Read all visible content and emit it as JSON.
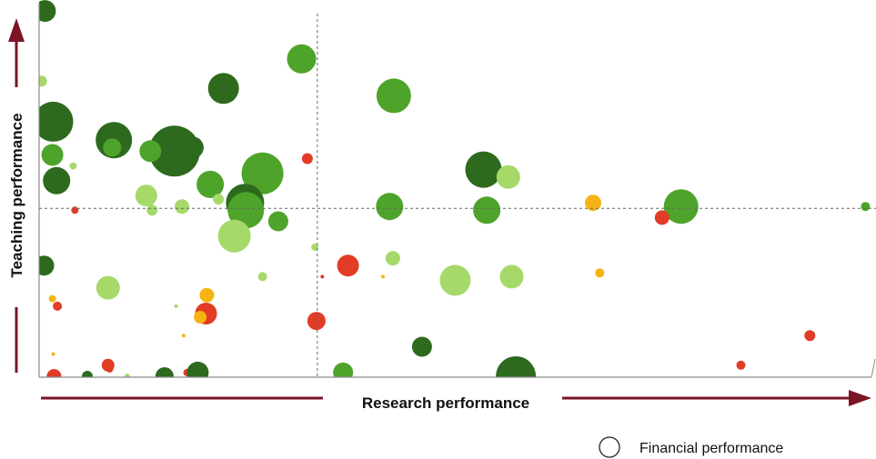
{
  "chart_data": {
    "type": "scatter",
    "subtype": "bubble",
    "xlabel": "Research performance",
    "ylabel": "Teaching performance",
    "xlim": [
      0,
      100
    ],
    "ylim": [
      0,
      100
    ],
    "grid": false,
    "reference_lines": {
      "x": 33.5,
      "y": 45.5
    },
    "axis_arrows": true,
    "legend": {
      "label": "Financial performance",
      "marker": "open-circle",
      "placement": "bottom-right"
    },
    "colors": {
      "dark_green": "#2d6a1e",
      "mid_green": "#4ea32a",
      "light_green": "#a6d96a",
      "orange": "#f6b314",
      "red": "#e03c26",
      "axis_arrow": "#7b1526",
      "reference_line": "#666666"
    },
    "points": [
      {
        "x": 0.7,
        "y": 99,
        "size": 12,
        "color": "dark_green"
      },
      {
        "x": 31.6,
        "y": 86,
        "size": 16,
        "color": "mid_green"
      },
      {
        "x": 0.3,
        "y": 80,
        "size": 6,
        "color": "light_green"
      },
      {
        "x": 22.2,
        "y": 78,
        "size": 17,
        "color": "dark_green"
      },
      {
        "x": 42.7,
        "y": 76,
        "size": 19,
        "color": "mid_green"
      },
      {
        "x": 1.7,
        "y": 69,
        "size": 22,
        "color": "dark_green"
      },
      {
        "x": 9,
        "y": 64,
        "size": 20,
        "color": "dark_green"
      },
      {
        "x": 8.8,
        "y": 62,
        "size": 10,
        "color": "mid_green"
      },
      {
        "x": 16.3,
        "y": 61,
        "size": 28,
        "color": "dark_green"
      },
      {
        "x": 18.5,
        "y": 62,
        "size": 12,
        "color": "dark_green"
      },
      {
        "x": 13.4,
        "y": 61,
        "size": 12,
        "color": "mid_green"
      },
      {
        "x": 1.6,
        "y": 60,
        "size": 12,
        "color": "mid_green"
      },
      {
        "x": 4.1,
        "y": 57,
        "size": 4,
        "color": "light_green"
      },
      {
        "x": 32.3,
        "y": 59,
        "size": 6,
        "color": "red"
      },
      {
        "x": 26.9,
        "y": 55,
        "size": 23,
        "color": "mid_green"
      },
      {
        "x": 53.5,
        "y": 56,
        "size": 20,
        "color": "dark_green"
      },
      {
        "x": 56.5,
        "y": 54,
        "size": 13,
        "color": "light_green"
      },
      {
        "x": 2.1,
        "y": 53,
        "size": 15,
        "color": "dark_green"
      },
      {
        "x": 20.6,
        "y": 52,
        "size": 15,
        "color": "mid_green"
      },
      {
        "x": 12.9,
        "y": 49,
        "size": 12,
        "color": "light_green"
      },
      {
        "x": 21.6,
        "y": 48,
        "size": 6,
        "color": "light_green"
      },
      {
        "x": 24.8,
        "y": 47,
        "size": 21,
        "color": "dark_green"
      },
      {
        "x": 24.9,
        "y": 45,
        "size": 20,
        "color": "mid_green"
      },
      {
        "x": 42.2,
        "y": 46,
        "size": 15,
        "color": "mid_green"
      },
      {
        "x": 53.9,
        "y": 45,
        "size": 15,
        "color": "mid_green"
      },
      {
        "x": 66.7,
        "y": 47,
        "size": 9,
        "color": "orange"
      },
      {
        "x": 77.3,
        "y": 46,
        "size": 19,
        "color": "mid_green"
      },
      {
        "x": 99.5,
        "y": 46,
        "size": 5,
        "color": "mid_green"
      },
      {
        "x": 4.3,
        "y": 45,
        "size": 4,
        "color": "red"
      },
      {
        "x": 13.6,
        "y": 45,
        "size": 6,
        "color": "light_green"
      },
      {
        "x": 17.2,
        "y": 46,
        "size": 8,
        "color": "light_green"
      },
      {
        "x": 28.8,
        "y": 42,
        "size": 11,
        "color": "mid_green"
      },
      {
        "x": 75,
        "y": 43,
        "size": 8,
        "color": "red"
      },
      {
        "x": 23.5,
        "y": 38,
        "size": 18,
        "color": "light_green"
      },
      {
        "x": 33.2,
        "y": 35,
        "size": 4,
        "color": "light_green"
      },
      {
        "x": 0.6,
        "y": 30,
        "size": 11,
        "color": "dark_green"
      },
      {
        "x": 37.2,
        "y": 30,
        "size": 12,
        "color": "red"
      },
      {
        "x": 42.6,
        "y": 32,
        "size": 8,
        "color": "light_green"
      },
      {
        "x": 50.1,
        "y": 26,
        "size": 17,
        "color": "light_green"
      },
      {
        "x": 56.9,
        "y": 27,
        "size": 13,
        "color": "light_green"
      },
      {
        "x": 67.5,
        "y": 28,
        "size": 5,
        "color": "orange"
      },
      {
        "x": 26.9,
        "y": 27,
        "size": 5,
        "color": "light_green"
      },
      {
        "x": 41.4,
        "y": 27,
        "size": 2,
        "color": "orange"
      },
      {
        "x": 8.3,
        "y": 24,
        "size": 13,
        "color": "light_green"
      },
      {
        "x": 1.6,
        "y": 21,
        "size": 4,
        "color": "orange"
      },
      {
        "x": 2.2,
        "y": 19,
        "size": 5,
        "color": "red"
      },
      {
        "x": 20.2,
        "y": 22,
        "size": 8,
        "color": "orange"
      },
      {
        "x": 16.5,
        "y": 19,
        "size": 2,
        "color": "light_green"
      },
      {
        "x": 20.1,
        "y": 17,
        "size": 12,
        "color": "red"
      },
      {
        "x": 19.4,
        "y": 16,
        "size": 7,
        "color": "orange"
      },
      {
        "x": 33.4,
        "y": 15,
        "size": 10,
        "color": "red"
      },
      {
        "x": 34.1,
        "y": 27,
        "size": 2,
        "color": "red"
      },
      {
        "x": 17.4,
        "y": 11,
        "size": 2,
        "color": "orange"
      },
      {
        "x": 46.1,
        "y": 8,
        "size": 11,
        "color": "dark_green"
      },
      {
        "x": 92.8,
        "y": 11,
        "size": 6,
        "color": "red"
      },
      {
        "x": 1.7,
        "y": 6,
        "size": 2,
        "color": "orange"
      },
      {
        "x": 8.3,
        "y": 3,
        "size": 7,
        "color": "red"
      },
      {
        "x": 8.5,
        "y": 2,
        "size": 4,
        "color": "red"
      },
      {
        "x": 84.5,
        "y": 3,
        "size": 5,
        "color": "red"
      },
      {
        "x": 1.8,
        "y": 0,
        "size": 8,
        "color": "red"
      },
      {
        "x": 5.8,
        "y": 0,
        "size": 6,
        "color": "dark_green"
      },
      {
        "x": 10.6,
        "y": 0,
        "size": 3,
        "color": "light_green"
      },
      {
        "x": 15.1,
        "y": 0,
        "size": 10,
        "color": "dark_green"
      },
      {
        "x": 17.8,
        "y": 1,
        "size": 4,
        "color": "red"
      },
      {
        "x": 19.1,
        "y": 1,
        "size": 12,
        "color": "dark_green"
      },
      {
        "x": 36.6,
        "y": 1,
        "size": 11,
        "color": "mid_green"
      },
      {
        "x": 57.4,
        "y": 0,
        "size": 22,
        "color": "dark_green"
      }
    ]
  }
}
